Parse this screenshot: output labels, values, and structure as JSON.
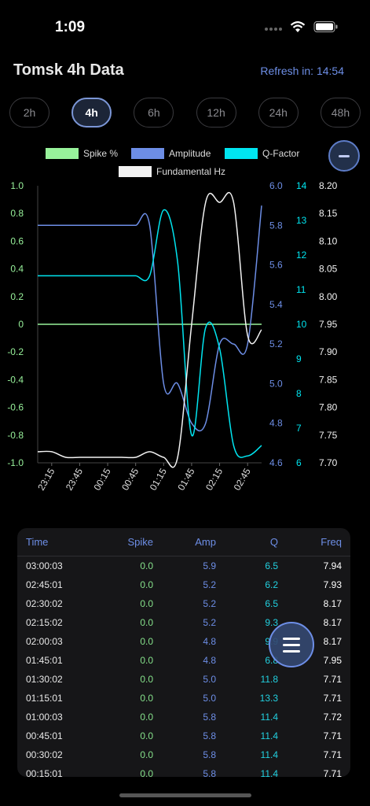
{
  "status": {
    "time": "1:09"
  },
  "header": {
    "title": "Tomsk 4h Data",
    "refresh": "Refresh in: 14:54"
  },
  "ranges": [
    {
      "label": "2h",
      "active": false
    },
    {
      "label": "4h",
      "active": true
    },
    {
      "label": "6h",
      "active": false
    },
    {
      "label": "12h",
      "active": false
    },
    {
      "label": "24h",
      "active": false
    },
    {
      "label": "48h",
      "active": false
    }
  ],
  "legend": [
    {
      "label": "Spike %",
      "color": "#98f29b"
    },
    {
      "label": "Amplitude",
      "color": "#6d8ee6"
    },
    {
      "label": "Q-Factor",
      "color": "#00e5f0"
    },
    {
      "label": "Fundamental Hz",
      "color": "#f2f2f2"
    }
  ],
  "chart_data": {
    "type": "line",
    "x_ticks": [
      "23:15",
      "23:45",
      "00:15",
      "00:45",
      "01:15",
      "01:45",
      "02:15",
      "02:45"
    ],
    "axes": {
      "spike": {
        "ticks": [
          "1.0",
          "0.8",
          "0.6",
          "0.4",
          "0.2",
          "0",
          "-0.2",
          "-0.4",
          "-0.6",
          "-0.8",
          "-1.0"
        ],
        "ylim": [
          -1.0,
          1.0
        ],
        "color": "#98f29b"
      },
      "amplitude": {
        "ticks": [
          "6.0",
          "5.8",
          "5.6",
          "5.4",
          "5.2",
          "5.0",
          "4.8",
          "4.6"
        ],
        "ylim": [
          4.6,
          6.0
        ],
        "color": "#6d8ee6"
      },
      "qfactor": {
        "ticks": [
          "14",
          "13",
          "12",
          "11",
          "10",
          "9",
          "8",
          "7",
          "6"
        ],
        "ylim": [
          6,
          14
        ],
        "color": "#00e5f0"
      },
      "freq": {
        "ticks": [
          "8.20",
          "8.15",
          "8.10",
          "8.05",
          "8.00",
          "7.95",
          "7.90",
          "7.85",
          "7.80",
          "7.75",
          "7.70"
        ],
        "ylim": [
          7.7,
          8.2
        ],
        "color": "#f2f2f2"
      }
    },
    "x": [
      "23:00",
      "23:15",
      "23:30",
      "23:45",
      "00:00",
      "00:15",
      "00:30",
      "00:45",
      "01:00",
      "01:15",
      "01:30",
      "01:45",
      "02:00",
      "02:15",
      "02:30",
      "02:45",
      "03:00"
    ],
    "series": [
      {
        "name": "Spike %",
        "axis": "spike",
        "color": "#98f29b",
        "values": [
          0,
          0,
          0,
          0,
          0,
          0,
          0,
          0,
          0,
          0,
          0,
          0,
          0,
          0,
          0,
          0,
          0
        ]
      },
      {
        "name": "Amplitude",
        "axis": "amplitude",
        "color": "#6d8ee6",
        "values": [
          5.8,
          5.8,
          5.8,
          5.8,
          5.8,
          5.8,
          5.8,
          5.8,
          5.8,
          5.0,
          5.0,
          4.8,
          4.8,
          5.2,
          5.2,
          5.2,
          5.9
        ]
      },
      {
        "name": "Q-Factor",
        "axis": "qfactor",
        "color": "#00e5f0",
        "values": [
          11.4,
          11.4,
          11.4,
          11.4,
          11.4,
          11.4,
          11.4,
          11.4,
          11.4,
          13.3,
          11.8,
          6.8,
          9.9,
          9.3,
          6.5,
          6.2,
          6.5
        ]
      },
      {
        "name": "Fundamental Hz",
        "axis": "freq",
        "color": "#f2f2f2",
        "values": [
          7.72,
          7.72,
          7.71,
          7.71,
          7.71,
          7.71,
          7.71,
          7.71,
          7.72,
          7.71,
          7.71,
          7.95,
          8.17,
          8.17,
          8.17,
          7.93,
          7.94
        ]
      }
    ]
  },
  "table": {
    "headers": [
      "Time",
      "Spike",
      "Amp",
      "Q",
      "Freq"
    ],
    "rows": [
      [
        "03:00:03",
        "0.0",
        "5.9",
        "6.5",
        "7.94"
      ],
      [
        "02:45:01",
        "0.0",
        "5.2",
        "6.2",
        "7.93"
      ],
      [
        "02:30:02",
        "0.0",
        "5.2",
        "6.5",
        "8.17"
      ],
      [
        "02:15:02",
        "0.0",
        "5.2",
        "9.3",
        "8.17"
      ],
      [
        "02:00:03",
        "0.0",
        "4.8",
        "9.9",
        "8.17"
      ],
      [
        "01:45:01",
        "0.0",
        "4.8",
        "6.8",
        "7.95"
      ],
      [
        "01:30:02",
        "0.0",
        "5.0",
        "11.8",
        "7.71"
      ],
      [
        "01:15:01",
        "0.0",
        "5.0",
        "13.3",
        "7.71"
      ],
      [
        "01:00:03",
        "0.0",
        "5.8",
        "11.4",
        "7.72"
      ],
      [
        "00:45:01",
        "0.0",
        "5.8",
        "11.4",
        "7.71"
      ],
      [
        "00:30:02",
        "0.0",
        "5.8",
        "11.4",
        "7.71"
      ],
      [
        "00:15:01",
        "0.0",
        "5.8",
        "11.4",
        "7.71"
      ]
    ]
  }
}
